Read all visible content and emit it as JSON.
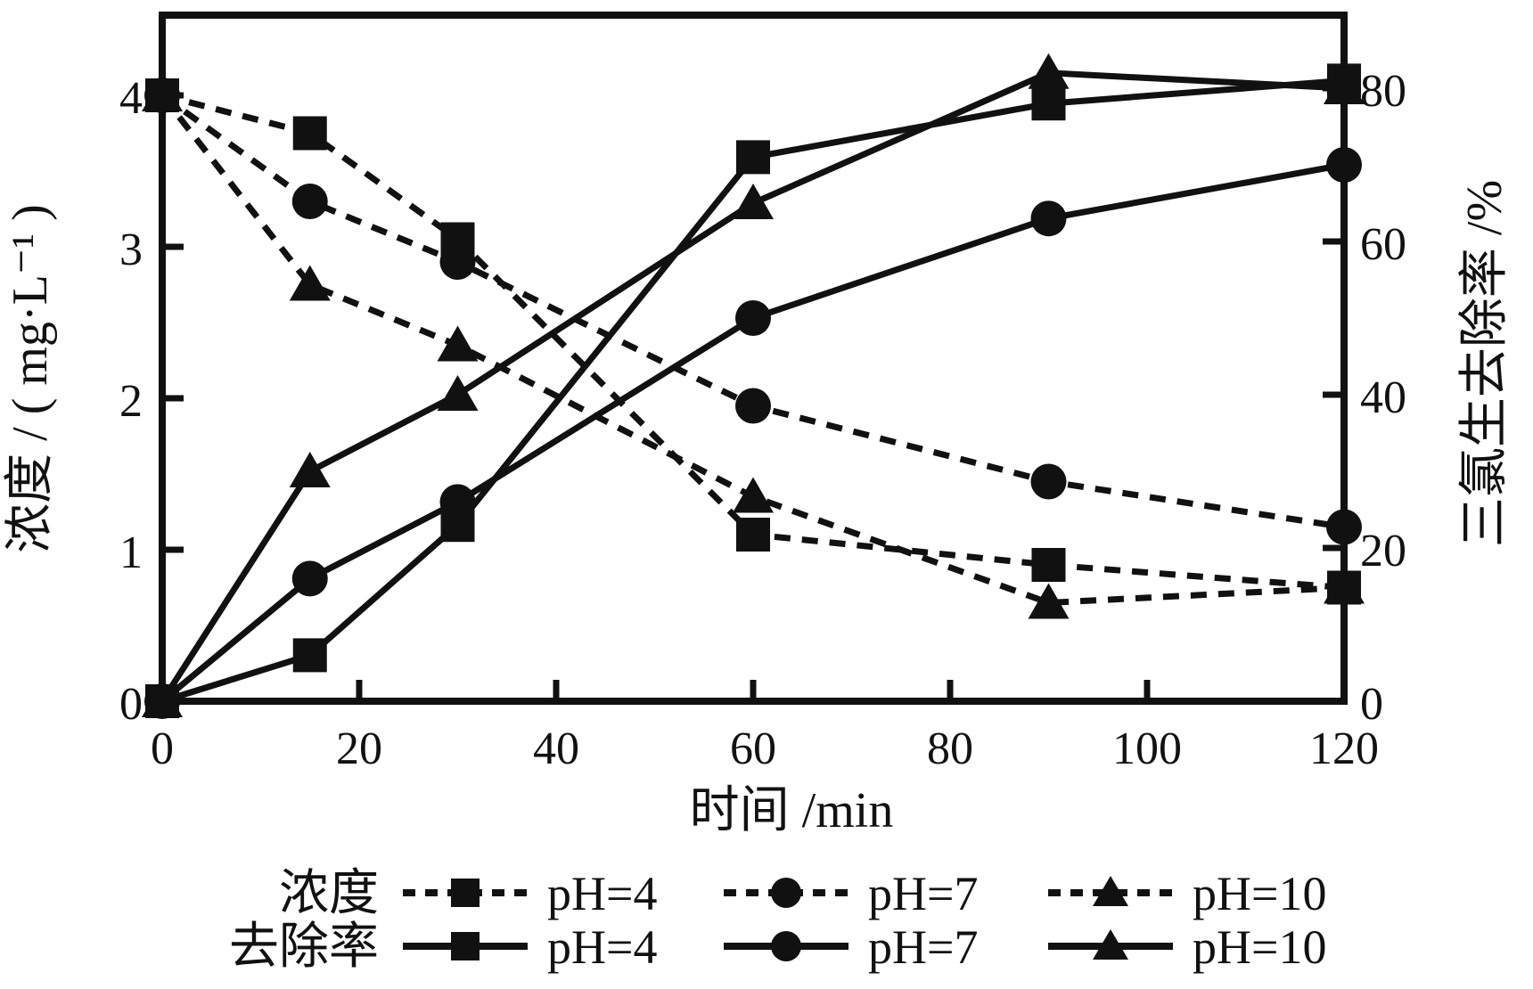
{
  "chart_data": {
    "type": "line",
    "title": "",
    "xlabel": "时间 /min",
    "x": [
      0,
      15,
      30,
      60,
      90,
      120
    ],
    "x_range": [
      0,
      120
    ],
    "x_ticks": [
      0,
      20,
      40,
      60,
      80,
      100,
      120
    ],
    "left_axis": {
      "label": "浓度 / ( mg·L⁻¹ )",
      "range": [
        0,
        4
      ],
      "ticks": [
        0,
        1,
        2,
        3,
        4
      ],
      "unit": "mg·L⁻¹"
    },
    "right_axis": {
      "label": "三氯生去除率 /%",
      "range": [
        0,
        80
      ],
      "ticks": [
        0,
        20,
        40,
        60,
        80
      ],
      "unit": "%"
    },
    "grid": false,
    "series": [
      {
        "name": "浓度 pH=4",
        "group": "浓度",
        "ph": "pH=4",
        "axis": "left",
        "line": "dashed",
        "marker": "square",
        "values": [
          4.0,
          3.75,
          3.05,
          1.1,
          0.9,
          0.75
        ]
      },
      {
        "name": "浓度 pH=7",
        "group": "浓度",
        "ph": "pH=7",
        "axis": "left",
        "line": "dashed",
        "marker": "circle",
        "values": [
          4.0,
          3.3,
          2.9,
          1.95,
          1.45,
          1.15
        ]
      },
      {
        "name": "浓度 pH=10",
        "group": "浓度",
        "ph": "pH=10",
        "axis": "left",
        "line": "dashed",
        "marker": "triangle",
        "values": [
          4.0,
          2.75,
          2.35,
          1.35,
          0.65,
          0.75
        ]
      },
      {
        "name": "去除率 pH=4",
        "group": "去除率",
        "ph": "pH=4",
        "axis": "right",
        "line": "solid",
        "marker": "square",
        "values": [
          0,
          6,
          23,
          71,
          78,
          81
        ]
      },
      {
        "name": "去除率 pH=7",
        "group": "去除率",
        "ph": "pH=7",
        "axis": "right",
        "line": "solid",
        "marker": "circle",
        "values": [
          0,
          16,
          26,
          50,
          63,
          70
        ]
      },
      {
        "name": "去除率 pH=10",
        "group": "去除率",
        "ph": "pH=10",
        "axis": "right",
        "line": "solid",
        "marker": "triangle",
        "values": [
          0,
          30,
          40,
          65,
          82,
          80
        ]
      }
    ],
    "legend": {
      "position": "bottom",
      "rows": [
        {
          "label": "浓度",
          "line": "dashed",
          "entries": [
            {
              "marker": "square",
              "text": "pH=4"
            },
            {
              "marker": "circle",
              "text": "pH=7"
            },
            {
              "marker": "triangle",
              "text": "pH=10"
            }
          ]
        },
        {
          "label": "去除率",
          "line": "solid",
          "entries": [
            {
              "marker": "square",
              "text": "pH=4"
            },
            {
              "marker": "circle",
              "text": "pH=7"
            },
            {
              "marker": "triangle",
              "text": "pH=10"
            }
          ]
        }
      ]
    },
    "colors": {
      "foreground": "#111111",
      "background": "#ffffff"
    }
  }
}
